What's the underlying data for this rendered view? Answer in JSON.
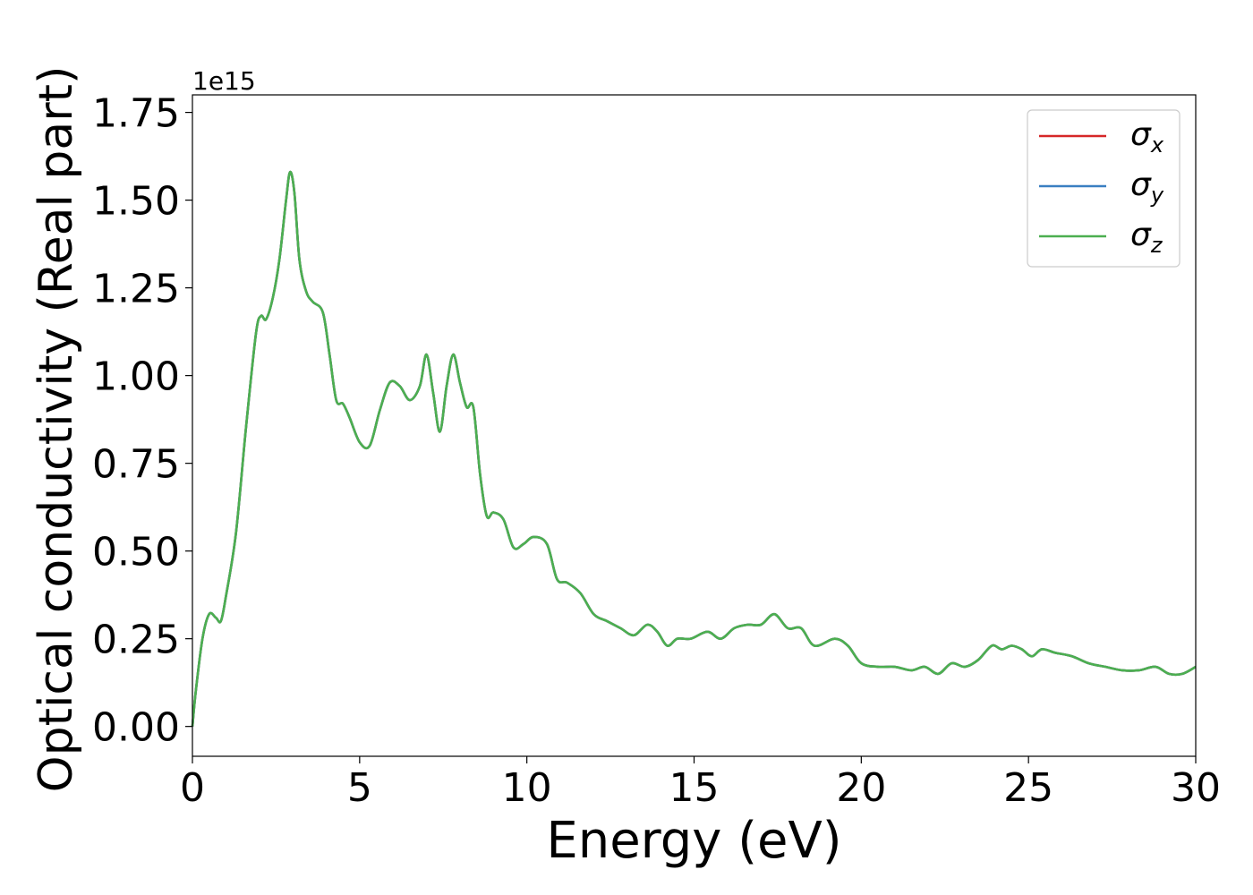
{
  "chart_data": {
    "type": "line",
    "xlabel": "Energy (eV)",
    "ylabel": "Optical conductivity (Real part)",
    "offset_text": "1e15",
    "y_scale_factor": 1000000000000000.0,
    "xlim": [
      0,
      30
    ],
    "ylim": [
      -0.085,
      1.8
    ],
    "xticks": [
      0,
      5,
      10,
      15,
      20,
      25,
      30
    ],
    "xtick_labels": [
      "0",
      "5",
      "10",
      "15",
      "20",
      "25",
      "30"
    ],
    "yticks": [
      0.0,
      0.25,
      0.5,
      0.75,
      1.0,
      1.25,
      1.5,
      1.75
    ],
    "ytick_labels": [
      "0.00",
      "0.25",
      "0.50",
      "0.75",
      "1.00",
      "1.25",
      "1.50",
      "1.75"
    ],
    "grid": false,
    "legend_position": "top-right",
    "legend": [
      {
        "symbol": "σ",
        "sub": "x",
        "color": "#d62728"
      },
      {
        "symbol": "σ",
        "sub": "y",
        "color": "#3a7fc1"
      },
      {
        "symbol": "σ",
        "sub": "z",
        "color": "#4caf50"
      }
    ],
    "x": [
      0,
      0.1,
      0.3,
      0.5,
      0.7,
      0.85,
      1.0,
      1.3,
      1.6,
      1.9,
      2.05,
      2.2,
      2.4,
      2.6,
      2.8,
      2.92,
      3.05,
      3.2,
      3.4,
      3.6,
      3.9,
      4.1,
      4.3,
      4.5,
      4.7,
      5.0,
      5.3,
      5.6,
      5.9,
      6.2,
      6.5,
      6.8,
      7.0,
      7.2,
      7.4,
      7.6,
      7.8,
      8.0,
      8.2,
      8.4,
      8.6,
      8.8,
      9.0,
      9.3,
      9.6,
      9.9,
      10.2,
      10.6,
      10.9,
      11.2,
      11.6,
      12.0,
      12.4,
      12.8,
      13.2,
      13.6,
      13.9,
      14.2,
      14.5,
      14.9,
      15.4,
      15.8,
      16.2,
      16.6,
      17.0,
      17.4,
      17.8,
      18.2,
      18.6,
      19.2,
      19.6,
      20.0,
      20.5,
      21.0,
      21.5,
      21.9,
      22.3,
      22.7,
      23.1,
      23.5,
      23.9,
      24.2,
      24.5,
      24.8,
      25.1,
      25.4,
      25.8,
      26.3,
      26.8,
      27.3,
      27.8,
      28.3,
      28.8,
      29.2,
      29.6,
      30.0
    ],
    "series": [
      {
        "name": "σx",
        "color": "#d62728",
        "y": [
          0.0,
          0.1,
          0.25,
          0.32,
          0.31,
          0.3,
          0.37,
          0.55,
          0.85,
          1.12,
          1.17,
          1.16,
          1.22,
          1.33,
          1.5,
          1.58,
          1.52,
          1.33,
          1.24,
          1.21,
          1.18,
          1.06,
          0.93,
          0.92,
          0.88,
          0.81,
          0.8,
          0.9,
          0.98,
          0.97,
          0.93,
          0.97,
          1.06,
          0.95,
          0.84,
          0.97,
          1.06,
          0.98,
          0.91,
          0.91,
          0.72,
          0.6,
          0.61,
          0.59,
          0.51,
          0.52,
          0.54,
          0.52,
          0.42,
          0.41,
          0.38,
          0.32,
          0.3,
          0.28,
          0.26,
          0.29,
          0.27,
          0.23,
          0.25,
          0.25,
          0.27,
          0.25,
          0.28,
          0.29,
          0.29,
          0.32,
          0.28,
          0.28,
          0.23,
          0.25,
          0.23,
          0.18,
          0.17,
          0.17,
          0.16,
          0.17,
          0.15,
          0.18,
          0.17,
          0.19,
          0.23,
          0.22,
          0.23,
          0.22,
          0.2,
          0.22,
          0.21,
          0.2,
          0.18,
          0.17,
          0.16,
          0.16,
          0.17,
          0.15,
          0.15,
          0.17
        ]
      },
      {
        "name": "σy",
        "color": "#3a7fc1",
        "y": [
          0.0,
          0.1,
          0.25,
          0.32,
          0.31,
          0.3,
          0.37,
          0.55,
          0.85,
          1.12,
          1.17,
          1.16,
          1.22,
          1.33,
          1.5,
          1.58,
          1.52,
          1.33,
          1.24,
          1.21,
          1.18,
          1.06,
          0.93,
          0.92,
          0.88,
          0.81,
          0.8,
          0.9,
          0.98,
          0.97,
          0.93,
          0.97,
          1.06,
          0.95,
          0.84,
          0.97,
          1.06,
          0.98,
          0.91,
          0.91,
          0.72,
          0.6,
          0.61,
          0.59,
          0.51,
          0.52,
          0.54,
          0.52,
          0.42,
          0.41,
          0.38,
          0.32,
          0.3,
          0.28,
          0.26,
          0.29,
          0.27,
          0.23,
          0.25,
          0.25,
          0.27,
          0.25,
          0.28,
          0.29,
          0.29,
          0.32,
          0.28,
          0.28,
          0.23,
          0.25,
          0.23,
          0.18,
          0.17,
          0.17,
          0.16,
          0.17,
          0.15,
          0.18,
          0.17,
          0.19,
          0.23,
          0.22,
          0.23,
          0.22,
          0.2,
          0.22,
          0.21,
          0.2,
          0.18,
          0.17,
          0.16,
          0.16,
          0.17,
          0.15,
          0.15,
          0.17
        ]
      },
      {
        "name": "σz",
        "color": "#4caf50",
        "y": [
          0.0,
          0.1,
          0.25,
          0.32,
          0.31,
          0.3,
          0.37,
          0.55,
          0.85,
          1.12,
          1.17,
          1.16,
          1.22,
          1.33,
          1.5,
          1.58,
          1.52,
          1.33,
          1.24,
          1.21,
          1.18,
          1.06,
          0.93,
          0.92,
          0.88,
          0.81,
          0.8,
          0.9,
          0.98,
          0.97,
          0.93,
          0.97,
          1.06,
          0.95,
          0.84,
          0.97,
          1.06,
          0.98,
          0.91,
          0.91,
          0.72,
          0.6,
          0.61,
          0.59,
          0.51,
          0.52,
          0.54,
          0.52,
          0.42,
          0.41,
          0.38,
          0.32,
          0.3,
          0.28,
          0.26,
          0.29,
          0.27,
          0.23,
          0.25,
          0.25,
          0.27,
          0.25,
          0.28,
          0.29,
          0.29,
          0.32,
          0.28,
          0.28,
          0.23,
          0.25,
          0.23,
          0.18,
          0.17,
          0.17,
          0.16,
          0.17,
          0.15,
          0.18,
          0.17,
          0.19,
          0.23,
          0.22,
          0.23,
          0.22,
          0.2,
          0.22,
          0.21,
          0.2,
          0.18,
          0.17,
          0.16,
          0.16,
          0.17,
          0.15,
          0.15,
          0.17
        ]
      }
    ]
  }
}
